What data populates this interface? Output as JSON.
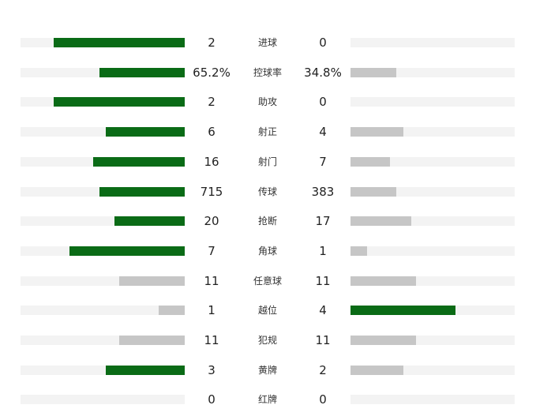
{
  "colors": {
    "winner_bar": "#0a6b16",
    "loser_bar": "#c6c6c6",
    "track": "#f3f3f3",
    "text": "#222222"
  },
  "stats": [
    {
      "label": "进球",
      "home": "2",
      "away": "0",
      "home_pct": 80,
      "away_pct": 0,
      "leader": "home"
    },
    {
      "label": "控球率",
      "home": "65.2%",
      "away": "34.8%",
      "home_pct": 52,
      "away_pct": 28,
      "leader": "home"
    },
    {
      "label": "助攻",
      "home": "2",
      "away": "0",
      "home_pct": 80,
      "away_pct": 0,
      "leader": "home"
    },
    {
      "label": "射正",
      "home": "6",
      "away": "4",
      "home_pct": 48,
      "away_pct": 32,
      "leader": "home"
    },
    {
      "label": "射门",
      "home": "16",
      "away": "7",
      "home_pct": 56,
      "away_pct": 24,
      "leader": "home"
    },
    {
      "label": "传球",
      "home": "715",
      "away": "383",
      "home_pct": 52,
      "away_pct": 28,
      "leader": "home"
    },
    {
      "label": "抢断",
      "home": "20",
      "away": "17",
      "home_pct": 43,
      "away_pct": 37,
      "leader": "home"
    },
    {
      "label": "角球",
      "home": "7",
      "away": "1",
      "home_pct": 70,
      "away_pct": 10,
      "leader": "home"
    },
    {
      "label": "任意球",
      "home": "11",
      "away": "11",
      "home_pct": 40,
      "away_pct": 40,
      "leader": "none"
    },
    {
      "label": "越位",
      "home": "1",
      "away": "4",
      "home_pct": 16,
      "away_pct": 64,
      "leader": "away"
    },
    {
      "label": "犯规",
      "home": "11",
      "away": "11",
      "home_pct": 40,
      "away_pct": 40,
      "leader": "none"
    },
    {
      "label": "黄牌",
      "home": "3",
      "away": "2",
      "home_pct": 48,
      "away_pct": 32,
      "leader": "home"
    },
    {
      "label": "红牌",
      "home": "0",
      "away": "0",
      "home_pct": 0,
      "away_pct": 0,
      "leader": "none"
    }
  ]
}
